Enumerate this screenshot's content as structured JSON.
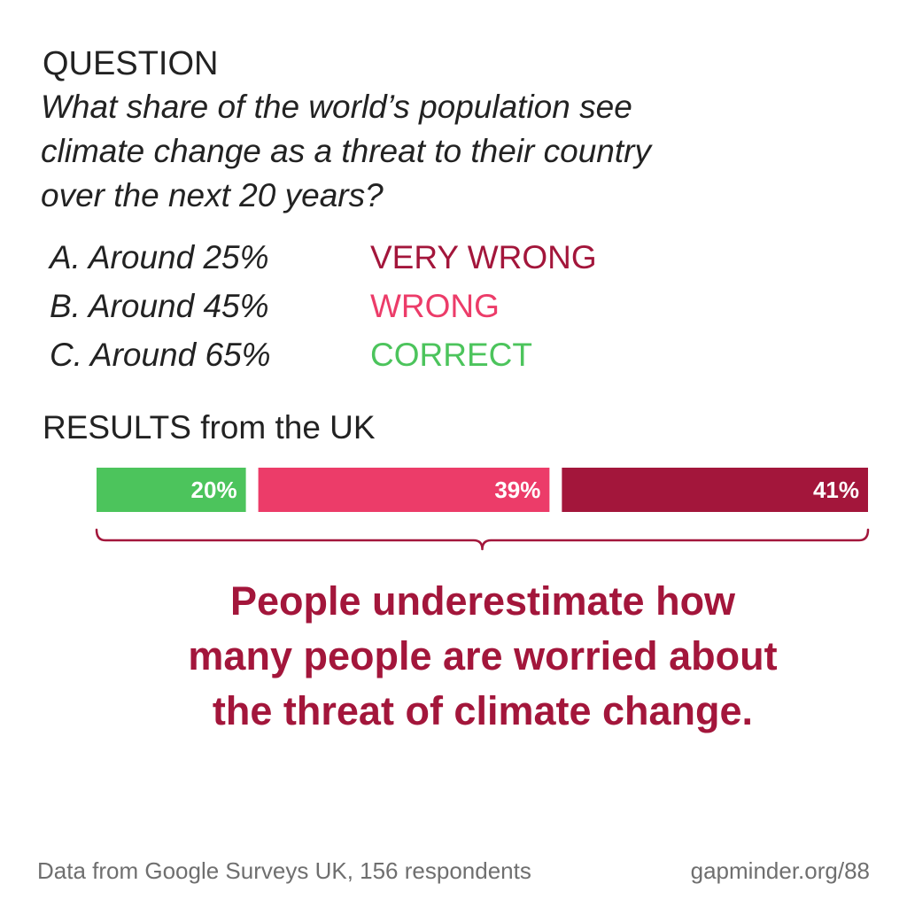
{
  "question": {
    "heading": "QUESTION",
    "lines": [
      "What share of the world’s population see",
      "climate change as a threat to their country",
      "over the next 20 years?"
    ]
  },
  "options": [
    {
      "label": "A. Around 25%",
      "verdict": "VERY WRONG",
      "color": "#a3163b"
    },
    {
      "label": "B. Around 45%",
      "verdict": "WRONG",
      "color": "#ec3c69"
    },
    {
      "label": "C. Around 65%",
      "verdict": "CORRECT",
      "color": "#4cc45c"
    }
  ],
  "results": {
    "heading": "RESULTS from the UK"
  },
  "chart_data": {
    "type": "bar",
    "orientation": "horizontal-stacked",
    "categories": [
      "CORRECT",
      "WRONG",
      "VERY WRONG"
    ],
    "values": [
      20,
      39,
      41
    ],
    "labels": [
      "20%",
      "39%",
      "41%"
    ],
    "colors": [
      "#4cc45c",
      "#ec3c69",
      "#a3163b"
    ],
    "unit": "%",
    "total": 100
  },
  "conclusion": {
    "lines": [
      "People underestimate how",
      "many people are worried about",
      "the threat of climate change."
    ]
  },
  "footer": {
    "source": "Data from Google Surveys UK, 156 respondents",
    "link": "gapminder.org/88"
  }
}
